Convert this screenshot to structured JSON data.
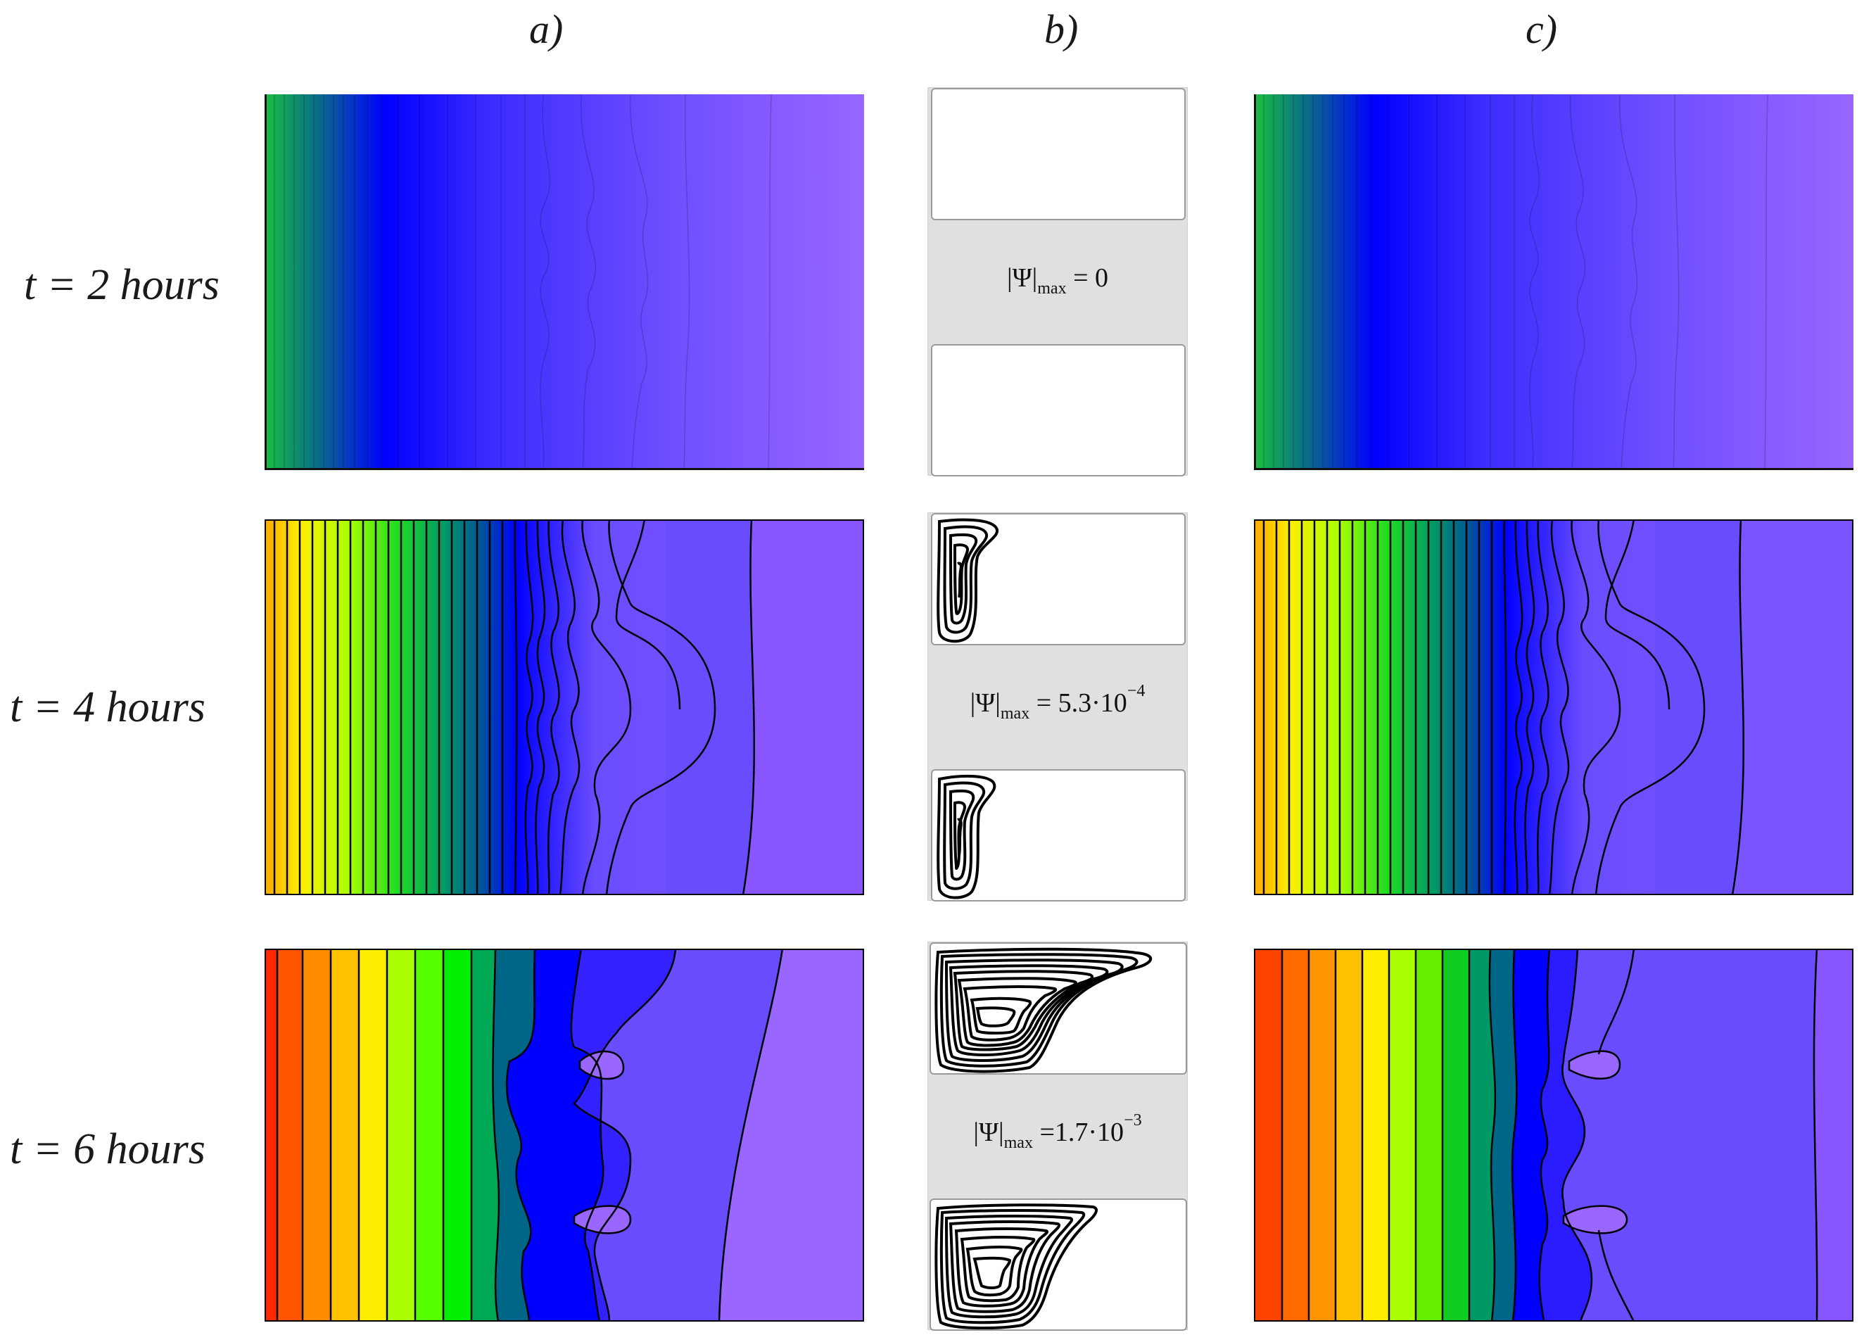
{
  "columns": [
    {
      "id": "a",
      "label": "a)"
    },
    {
      "id": "b",
      "label": "b)"
    },
    {
      "id": "c",
      "label": "c)"
    }
  ],
  "rows": [
    {
      "label": "t = 2 hours",
      "psi_prefix": "|Ψ|",
      "psi_sub": "max",
      "psi_value": "= 0",
      "psi_exp": ""
    },
    {
      "label": "t = 4 hours",
      "psi_prefix": "|Ψ|",
      "psi_sub": "max",
      "psi_value": "= 5.3·10",
      "psi_exp": "−4"
    },
    {
      "label": "t = 6 hours",
      "psi_prefix": "|Ψ|",
      "psi_sub": "max",
      "psi_value": "=1.7·10",
      "psi_exp": "−3"
    }
  ],
  "colors": {
    "red": "#ff2a00",
    "orange": "#ff8c00",
    "yellow": "#ffee00",
    "green": "#22cc22",
    "teal": "#008070",
    "blue": "#0000ff",
    "violet": "#6a4cff",
    "lavender": "#9966ff",
    "strip_gray": "#e0e0e0"
  }
}
